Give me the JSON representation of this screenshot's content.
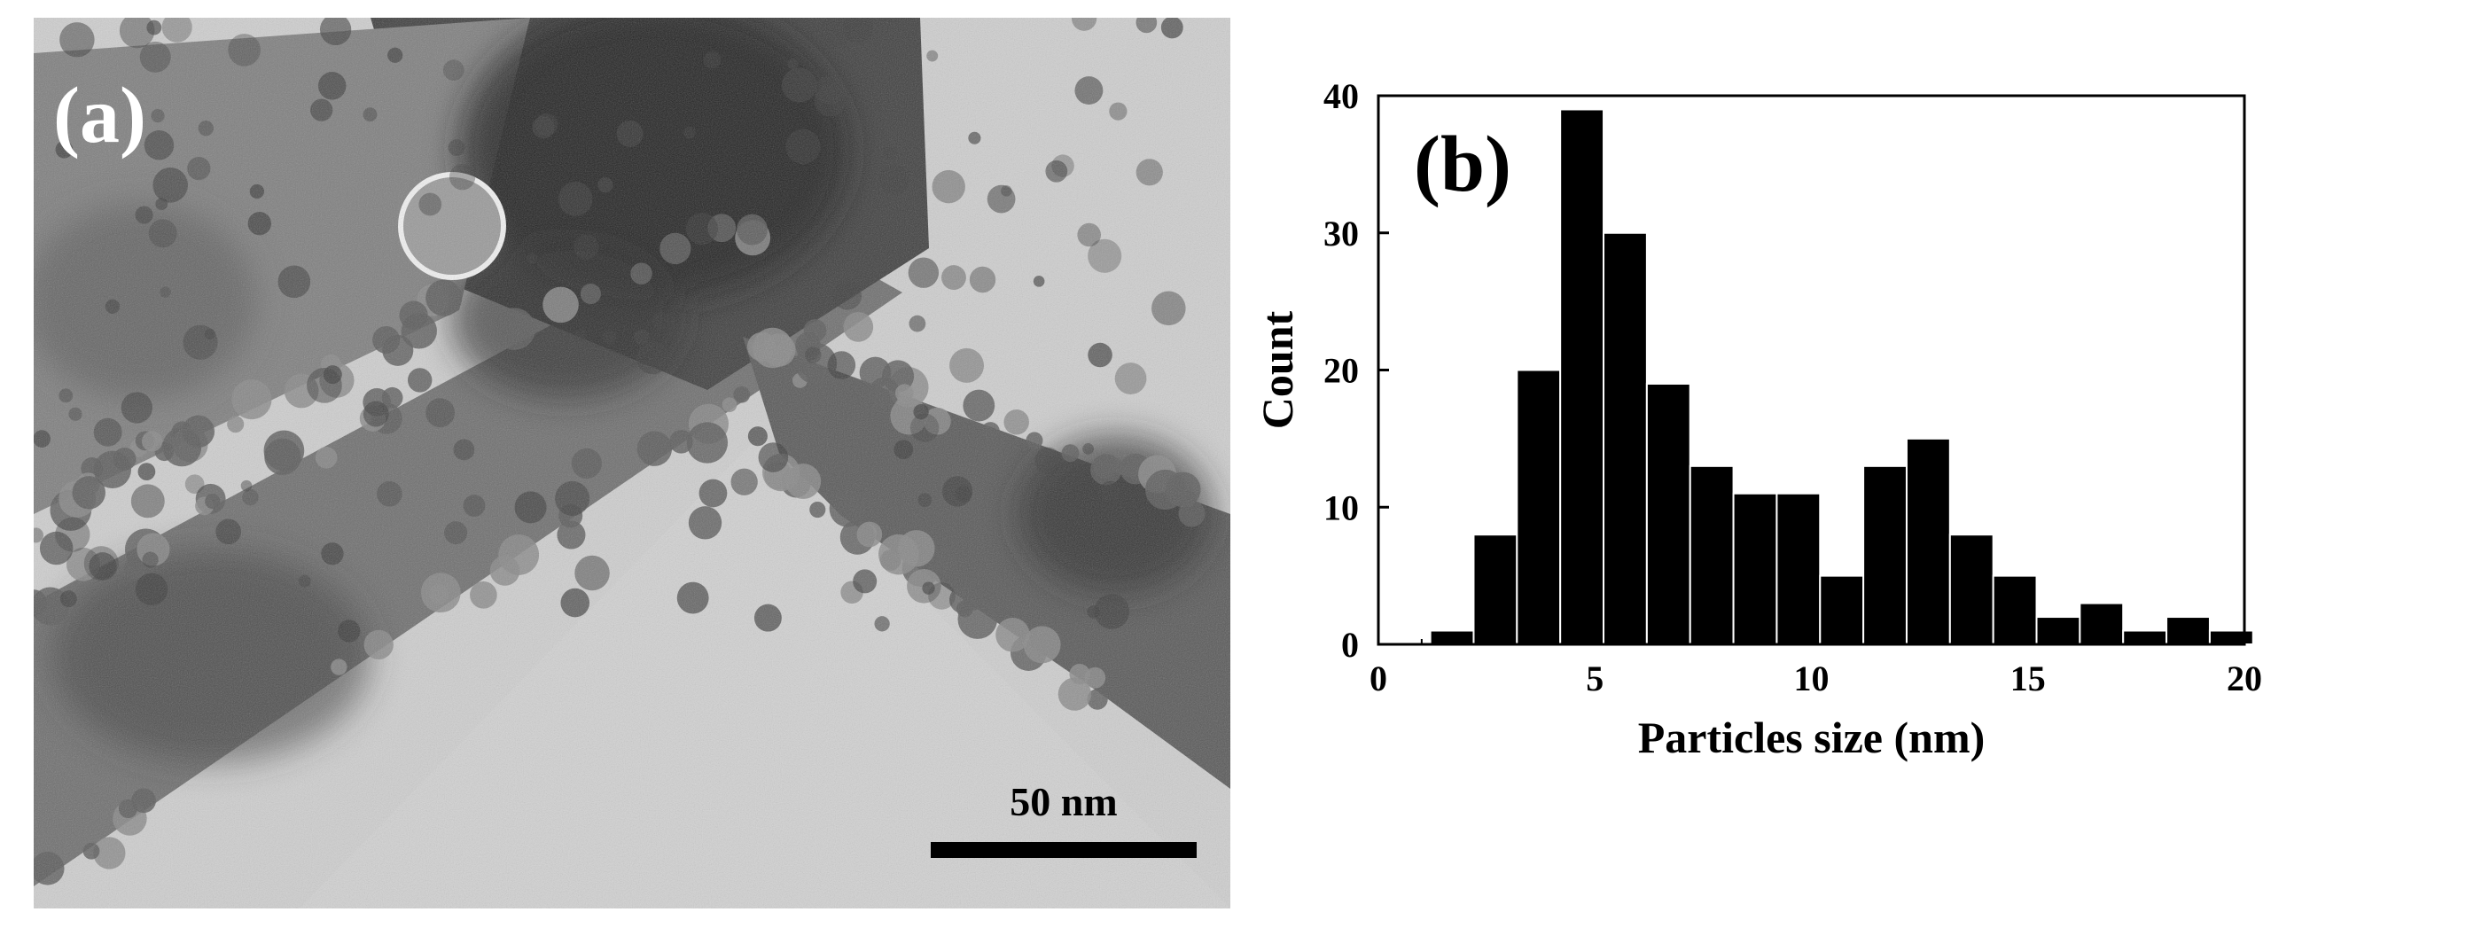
{
  "panel_a": {
    "label": "(a)",
    "scale_bar_text": "50 nm",
    "colors": {
      "background": "#c9c9c9",
      "fiber": "#6e6e6e",
      "particle": "#3a3a3a",
      "scale_bar": "#000000"
    }
  },
  "panel_b": {
    "label": "(b)"
  },
  "chart_data": {
    "type": "bar",
    "title": "",
    "xlabel": "Particles size (nm)",
    "ylabel": "Count",
    "xlim": [
      0,
      20
    ],
    "ylim": [
      0,
      40
    ],
    "x_ticks": [
      0,
      5,
      10,
      15,
      20
    ],
    "y_ticks": [
      0,
      10,
      20,
      30,
      40
    ],
    "bin_width": 1,
    "bins": [
      {
        "start": 1.2,
        "value": 1
      },
      {
        "start": 2.2,
        "value": 8
      },
      {
        "start": 3.2,
        "value": 20
      },
      {
        "start": 4.2,
        "value": 39
      },
      {
        "start": 5.2,
        "value": 30
      },
      {
        "start": 6.2,
        "value": 19
      },
      {
        "start": 7.2,
        "value": 13
      },
      {
        "start": 8.2,
        "value": 11
      },
      {
        "start": 9.2,
        "value": 11
      },
      {
        "start": 10.2,
        "value": 5
      },
      {
        "start": 11.2,
        "value": 13
      },
      {
        "start": 12.2,
        "value": 15
      },
      {
        "start": 13.2,
        "value": 8
      },
      {
        "start": 14.2,
        "value": 5
      },
      {
        "start": 15.2,
        "value": 2
      },
      {
        "start": 16.2,
        "value": 3
      },
      {
        "start": 17.2,
        "value": 1
      },
      {
        "start": 18.2,
        "value": 2
      },
      {
        "start": 19.2,
        "value": 1
      }
    ],
    "bar_color": "#000000",
    "bar_edge_color": "#ffffff",
    "grid": false
  }
}
